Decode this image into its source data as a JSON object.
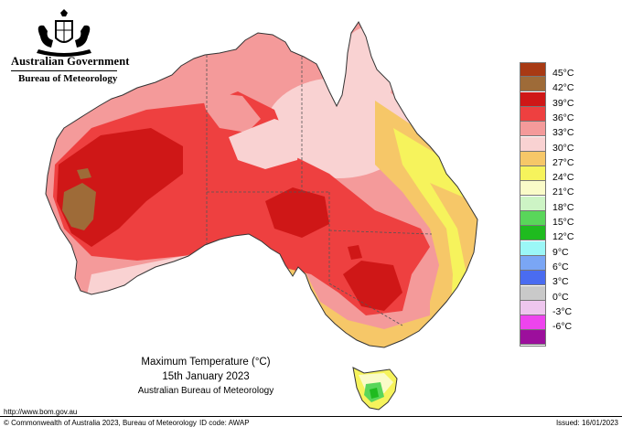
{
  "header": {
    "government_name": "Australian Government",
    "bureau_name": "Bureau of Meteorology",
    "crest_icon": "commonwealth-coat-of-arms"
  },
  "legend": {
    "items": [
      {
        "label": "45°C",
        "color": "#a83a14"
      },
      {
        "label": "42°C",
        "color": "#9e6b38"
      },
      {
        "label": "39°C",
        "color": "#cf1717"
      },
      {
        "label": "36°C",
        "color": "#ee4040"
      },
      {
        "label": "33°C",
        "color": "#f49a9a"
      },
      {
        "label": "30°C",
        "color": "#f9d2d2"
      },
      {
        "label": "27°C",
        "color": "#f6c768"
      },
      {
        "label": "24°C",
        "color": "#f6f35c"
      },
      {
        "label": "21°C",
        "color": "#fafbc8"
      },
      {
        "label": "18°C",
        "color": "#cdf4c5"
      },
      {
        "label": "15°C",
        "color": "#59d65a"
      },
      {
        "label": "12°C",
        "color": "#1fbb1f"
      },
      {
        "label": "9°C",
        "color": "#9bf7f7"
      },
      {
        "label": "6°C",
        "color": "#7aa6f5"
      },
      {
        "label": "3°C",
        "color": "#4a6cf0"
      },
      {
        "label": "0°C",
        "color": "#c9c9c9"
      },
      {
        "label": "-3°C",
        "color": "#eec6ee"
      },
      {
        "label": "-6°C",
        "color": "#ee44ee"
      },
      {
        "label": "",
        "color": "#9c0f9c"
      }
    ]
  },
  "caption": {
    "title": "Maximum Temperature (°C)",
    "date": "15th January 2023",
    "organisation": "Australian Bureau of Meteorology"
  },
  "footer": {
    "url": "http://www.bom.gov.au",
    "copyright": "© Commonwealth of Australia 2023, Bureau of Meteorology",
    "id_code": "ID code: AWAP",
    "issued": "Issued: 16/01/2023"
  }
}
